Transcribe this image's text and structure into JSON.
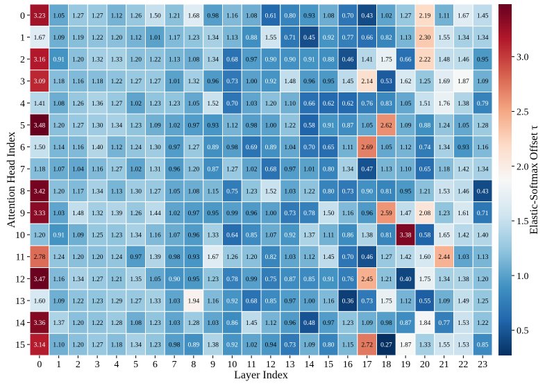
{
  "chart_data": {
    "type": "heatmap",
    "title": "",
    "xlabel": "Layer Index",
    "ylabel": "Attention Head Index",
    "colorbar_label": "Elastic-Softmax Offset τ",
    "x_ticks": [
      "0",
      "1",
      "2",
      "3",
      "4",
      "5",
      "6",
      "7",
      "8",
      "9",
      "10",
      "11",
      "12",
      "13",
      "14",
      "15",
      "16",
      "17",
      "18",
      "19",
      "20",
      "21",
      "22",
      "23"
    ],
    "y_ticks": [
      "0",
      "1",
      "2",
      "3",
      "4",
      "5",
      "6",
      "7",
      "8",
      "9",
      "10",
      "11",
      "12",
      "13",
      "14",
      "15"
    ],
    "colorbar_ticks": [
      "0.5",
      "1.0",
      "1.5",
      "2.0",
      "2.5",
      "3.0"
    ],
    "colorbar_tick_values": [
      0.5,
      1.0,
      1.5,
      2.0,
      2.5,
      3.0
    ],
    "vmin": 0.27,
    "vmax": 3.48,
    "colormap": "RdBu_r",
    "colors": [
      "#053061",
      "#2166ac",
      "#4393c3",
      "#92c5de",
      "#d1e5f0",
      "#f7f7f7",
      "#fddbc7",
      "#f4a582",
      "#d6604d",
      "#b2182b",
      "#67001f"
    ],
    "cell_labels": [
      [
        "3.23",
        "1.05",
        "1.27",
        "1.27",
        "1.12",
        "1.26",
        "1.50",
        "1.21",
        "1.68",
        "0.98",
        "1.16",
        "1.08",
        "0.61",
        "0.80",
        "0.93",
        "1.08",
        "0.70",
        "0.43",
        "1.02",
        "1.27",
        "2.19",
        "1.11",
        "1.67",
        "1.45"
      ],
      [
        "1.67",
        "1.09",
        "1.19",
        "1.22",
        "1.20",
        "1.12",
        "1.01",
        "1.17",
        "1.23",
        "1.34",
        "1.13",
        "0.88",
        "1.55",
        "0.71",
        "0.45",
        "0.92",
        "0.77",
        "0.66",
        "0.82",
        "1.13",
        "2.30",
        "1.55",
        "1.34",
        "1.34"
      ],
      [
        "3.16",
        "0.91",
        "1.20",
        "1.32",
        "1.33",
        "1.20",
        "1.22",
        "1.13",
        "1.08",
        "1.34",
        "0.68",
        "0.97",
        "0.90",
        "0.90",
        "0.91",
        "0.88",
        "0.46",
        "1.41",
        "1.75",
        "0.66",
        "2.22",
        "1.48",
        "1.46",
        "0.95"
      ],
      [
        "3.09",
        "1.18",
        "1.16",
        "1.18",
        "1.22",
        "1.27",
        "1.27",
        "1.01",
        "1.32",
        "0.96",
        "0.73",
        "1.00",
        "0.92",
        "1.48",
        "0.96",
        "0.95",
        "1.45",
        "2.14",
        "0.53",
        "1.62",
        "1.25",
        "1.69",
        "1.87",
        "1.09"
      ],
      [
        "1.41",
        "1.08",
        "1.26",
        "1.36",
        "1.27",
        "1.02",
        "1.23",
        "1.23",
        "1.05",
        "1.52",
        "0.70",
        "1.03",
        "1.20",
        "1.10",
        "0.66",
        "0.62",
        "0.62",
        "0.76",
        "0.83",
        "1.05",
        "1.51",
        "1.76",
        "1.38",
        "0.79"
      ],
      [
        "3.48",
        "1.20",
        "1.27",
        "1.30",
        "1.34",
        "1.23",
        "1.09",
        "1.02",
        "0.97",
        "0.93",
        "1.12",
        "0.98",
        "1.00",
        "1.22",
        "0.58",
        "0.91",
        "0.87",
        "1.05",
        "2.62",
        "1.09",
        "0.88",
        "1.24",
        "1.05",
        "1.28"
      ],
      [
        "1.50",
        "1.14",
        "1.16",
        "1.40",
        "1.12",
        "1.24",
        "1.30",
        "0.97",
        "1.27",
        "0.89",
        "0.98",
        "0.69",
        "0.89",
        "1.04",
        "0.70",
        "0.65",
        "1.11",
        "2.69",
        "1.05",
        "1.12",
        "0.74",
        "1.34",
        "0.93",
        "1.16"
      ],
      [
        "1.18",
        "1.07",
        "1.04",
        "1.16",
        "1.27",
        "1.02",
        "1.31",
        "0.96",
        "1.20",
        "0.87",
        "1.27",
        "1.02",
        "0.68",
        "0.97",
        "1.01",
        "0.80",
        "1.34",
        "0.47",
        "1.13",
        "1.10",
        "0.65",
        "1.18",
        "1.42",
        "1.34"
      ],
      [
        "3.42",
        "1.20",
        "1.17",
        "1.34",
        "1.13",
        "1.30",
        "1.27",
        "1.05",
        "1.08",
        "1.15",
        "0.75",
        "1.23",
        "1.52",
        "1.03",
        "1.22",
        "0.80",
        "0.73",
        "0.90",
        "0.81",
        "0.95",
        "1.21",
        "1.53",
        "1.46",
        "0.43"
      ],
      [
        "3.33",
        "1.03",
        "1.48",
        "1.32",
        "1.39",
        "1.26",
        "1.44",
        "1.02",
        "0.97",
        "0.95",
        "0.99",
        "0.96",
        "1.00",
        "0.73",
        "0.78",
        "1.50",
        "1.16",
        "0.96",
        "2.59",
        "1.47",
        "2.08",
        "1.23",
        "1.61",
        "0.71"
      ],
      [
        "1.20",
        "0.91",
        "1.09",
        "1.25",
        "1.23",
        "1.34",
        "1.16",
        "1.07",
        "0.96",
        "1.33",
        "0.64",
        "0.85",
        "1.07",
        "0.92",
        "1.37",
        "1.11",
        "0.86",
        "1.38",
        "0.81",
        "3.38",
        "0.58",
        "1.65",
        "1.42",
        "1.40"
      ],
      [
        "2.78",
        "1.24",
        "1.20",
        "1.20",
        "1.24",
        "0.97",
        "1.39",
        "0.98",
        "0.93",
        "1.67",
        "1.26",
        "1.20",
        "0.82",
        "1.03",
        "1.12",
        "1.45",
        "0.70",
        "0.46",
        "1.27",
        "1.42",
        "1.60",
        "2.44",
        "1.03",
        "1.13"
      ],
      [
        "3.47",
        "1.16",
        "1.34",
        "1.27",
        "1.21",
        "1.35",
        "1.05",
        "0.90",
        "0.95",
        "1.23",
        "0.78",
        "0.99",
        "0.75",
        "0.87",
        "0.85",
        "0.91",
        "0.76",
        "2.45",
        "1.21",
        "0.40",
        "1.75",
        "1.34",
        "1.38",
        "1.20"
      ],
      [
        "1.60",
        "1.09",
        "1.22",
        "1.23",
        "1.29",
        "1.27",
        "1.33",
        "1.03",
        "1.94",
        "1.16",
        "0.92",
        "0.68",
        "0.85",
        "0.97",
        "1.00",
        "1.16",
        "0.36",
        "0.73",
        "1.75",
        "1.12",
        "0.55",
        "1.09",
        "1.49",
        "1.25"
      ],
      [
        "3.36",
        "1.37",
        "1.20",
        "1.22",
        "1.28",
        "1.08",
        "1.23",
        "1.03",
        "1.28",
        "1.03",
        "0.86",
        "1.45",
        "1.12",
        "0.96",
        "0.48",
        "0.97",
        "1.23",
        "1.09",
        "0.98",
        "0.87",
        "1.84",
        "0.77",
        "1.53",
        "1.22"
      ],
      [
        "3.14",
        "1.10",
        "1.20",
        "1.27",
        "1.18",
        "1.34",
        "1.23",
        "0.98",
        "0.89",
        "1.38",
        "0.92",
        "1.02",
        "0.94",
        "0.73",
        "1.09",
        "0.80",
        "1.15",
        "2.72",
        "0.27",
        "1.87",
        "1.33",
        "1.55",
        "1.53",
        "0.85"
      ]
    ]
  }
}
